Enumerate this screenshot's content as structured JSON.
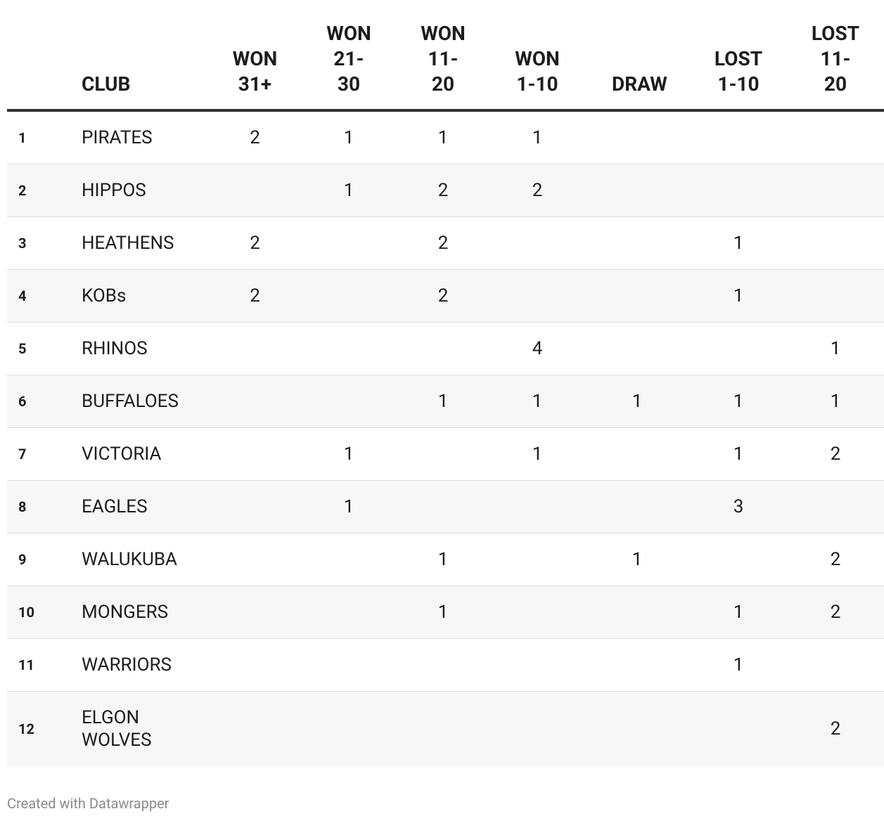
{
  "table": {
    "columns": [
      "CLUB",
      "WON 31+",
      "WON 21-30",
      "WON 11-20",
      "WON 1-10",
      "DRAW",
      "LOST 1-10",
      "LOST 11-20"
    ],
    "rows": [
      [
        1,
        "PIRATES",
        2,
        1,
        1,
        1,
        null,
        null,
        null
      ],
      [
        2,
        "HIPPOS",
        null,
        1,
        2,
        2,
        null,
        null,
        null
      ],
      [
        3,
        "HEATHENS",
        2,
        null,
        2,
        null,
        null,
        1,
        null
      ],
      [
        4,
        "KOBs",
        2,
        null,
        2,
        null,
        null,
        1,
        null
      ],
      [
        5,
        "RHINOS",
        null,
        null,
        null,
        4,
        null,
        null,
        1
      ],
      [
        6,
        "BUFFALOES",
        null,
        null,
        1,
        1,
        1,
        1,
        1
      ],
      [
        7,
        "VICTORIA",
        null,
        1,
        null,
        1,
        null,
        1,
        2
      ],
      [
        8,
        "EAGLES",
        null,
        1,
        null,
        null,
        null,
        3,
        null
      ],
      [
        9,
        "WALUKUBA",
        null,
        null,
        1,
        null,
        1,
        null,
        2
      ],
      [
        10,
        "MONGERS",
        null,
        null,
        1,
        null,
        null,
        1,
        2
      ],
      [
        11,
        "WARRIORS",
        null,
        null,
        null,
        null,
        null,
        1,
        null
      ],
      [
        12,
        "ELGON WOLVES",
        null,
        null,
        null,
        null,
        null,
        null,
        2
      ]
    ]
  },
  "footer": {
    "credit": "Created with Datawrapper"
  }
}
